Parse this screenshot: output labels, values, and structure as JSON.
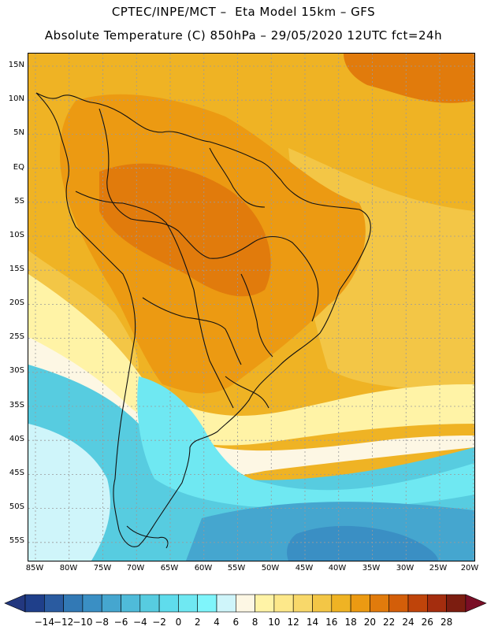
{
  "header": {
    "line1": "CPTEC/INPE/MCT –  Eta Model 15km – GFS",
    "line2": "Absolute Temperature (C) 850hPa – 29/05/2020 12UTC fct=24h"
  },
  "axes": {
    "lat_labels": [
      "15N",
      "10N",
      "5N",
      "EQ",
      "5S",
      "10S",
      "15S",
      "20S",
      "25S",
      "30S",
      "35S",
      "40S",
      "45S",
      "50S",
      "55S"
    ],
    "lon_labels": [
      "85W",
      "80W",
      "75W",
      "70W",
      "65W",
      "60W",
      "55W",
      "50W",
      "45W",
      "40W",
      "35W",
      "30W",
      "25W",
      "20W"
    ]
  },
  "colorbar": {
    "labels": [
      "-14",
      "-12",
      "-10",
      "-8",
      "-6",
      "-4",
      "-2",
      "0",
      "2",
      "4",
      "6",
      "8",
      "10",
      "12",
      "14",
      "16",
      "18",
      "20",
      "22",
      "24",
      "26",
      "28"
    ],
    "colors": [
      "#1f3f8a",
      "#2a5ba0",
      "#3279b5",
      "#3a8fc4",
      "#45a6cf",
      "#4fbbd9",
      "#57cce0",
      "#5fdcec",
      "#6fe8f2",
      "#7ff5fb",
      "#cff5fa",
      "#fdf7e4",
      "#fff3a6",
      "#fde88a",
      "#f8d86a",
      "#f3c646",
      "#efb324",
      "#ec9a12",
      "#e17b0c",
      "#d35e09",
      "#bf440a",
      "#a42d0e",
      "#7c1d10"
    ],
    "low_arrow_color": "#23387f",
    "high_arrow_color": "#7a0e26"
  },
  "map_colors": {
    "ocean_warm": "#efb324",
    "warm_core": "#ec9a12",
    "hot_core": "#e17b0c",
    "mild": "#f3c646",
    "mild_light": "#f8d86a",
    "pale": "#fff3a6",
    "cream": "#fdf7e4",
    "cold_light": "#cff5fa",
    "cold_cyan": "#6fe8f2",
    "cold_mid": "#57cce0",
    "cold_deep": "#45a6cf",
    "cold_deeper": "#3a8fc4",
    "coast": "#111111",
    "grid": "#9a9a9a"
  }
}
